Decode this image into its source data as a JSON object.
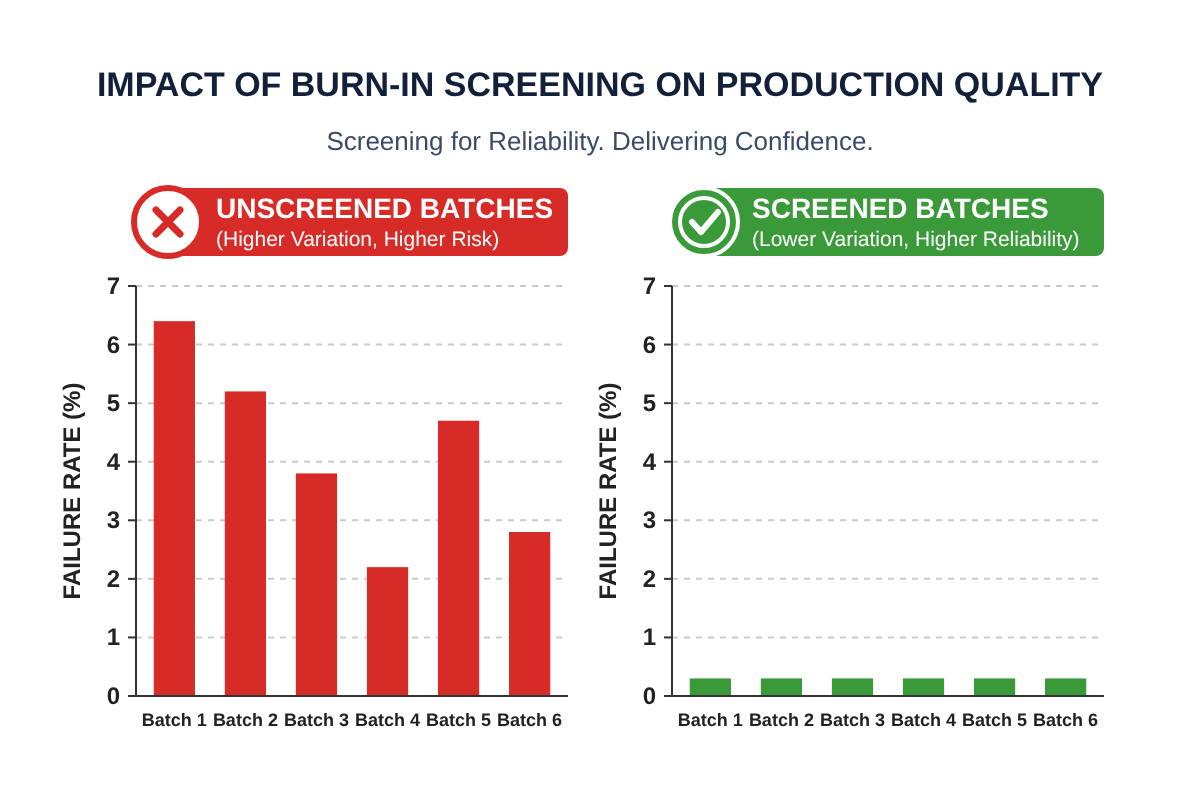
{
  "chart_data": [
    {
      "type": "other",
      "title": "IMPACT OF BURN-IN SCREENING ON PRODUCTION QUALITY",
      "subtitle": "Screening for Reliability. Delivering Confidence."
    },
    {
      "type": "bar",
      "title": "UNSCREENED BATCHES",
      "subtitle": "(Higher Variation, Higher Risk)",
      "ylabel": "FAILURE RATE (%)",
      "categories": [
        "Batch 1",
        "Batch 2",
        "Batch 3",
        "Batch 4",
        "Batch 5",
        "Batch 6"
      ],
      "values": [
        6.4,
        5.2,
        3.8,
        2.2,
        4.7,
        2.8
      ],
      "color": "#d62b27",
      "ylim": [
        0,
        7
      ],
      "yticks": [
        0,
        1,
        2,
        3,
        4,
        5,
        6,
        7
      ],
      "grid": "y"
    },
    {
      "type": "bar",
      "title": "SCREENED BATCHES",
      "subtitle": "(Lower Variation, Higher Reliability)",
      "ylabel": "FAILURE RATE (%)",
      "categories": [
        "Batch 1",
        "Batch 2",
        "Batch 3",
        "Batch 4",
        "Batch 5",
        "Batch 6"
      ],
      "values": [
        0.3,
        0.3,
        0.3,
        0.3,
        0.3,
        0.3
      ],
      "color": "#3a9a3a",
      "ylim": [
        0,
        7
      ],
      "yticks": [
        0,
        1,
        2,
        3,
        4,
        5,
        6,
        7
      ],
      "grid": "y"
    }
  ]
}
